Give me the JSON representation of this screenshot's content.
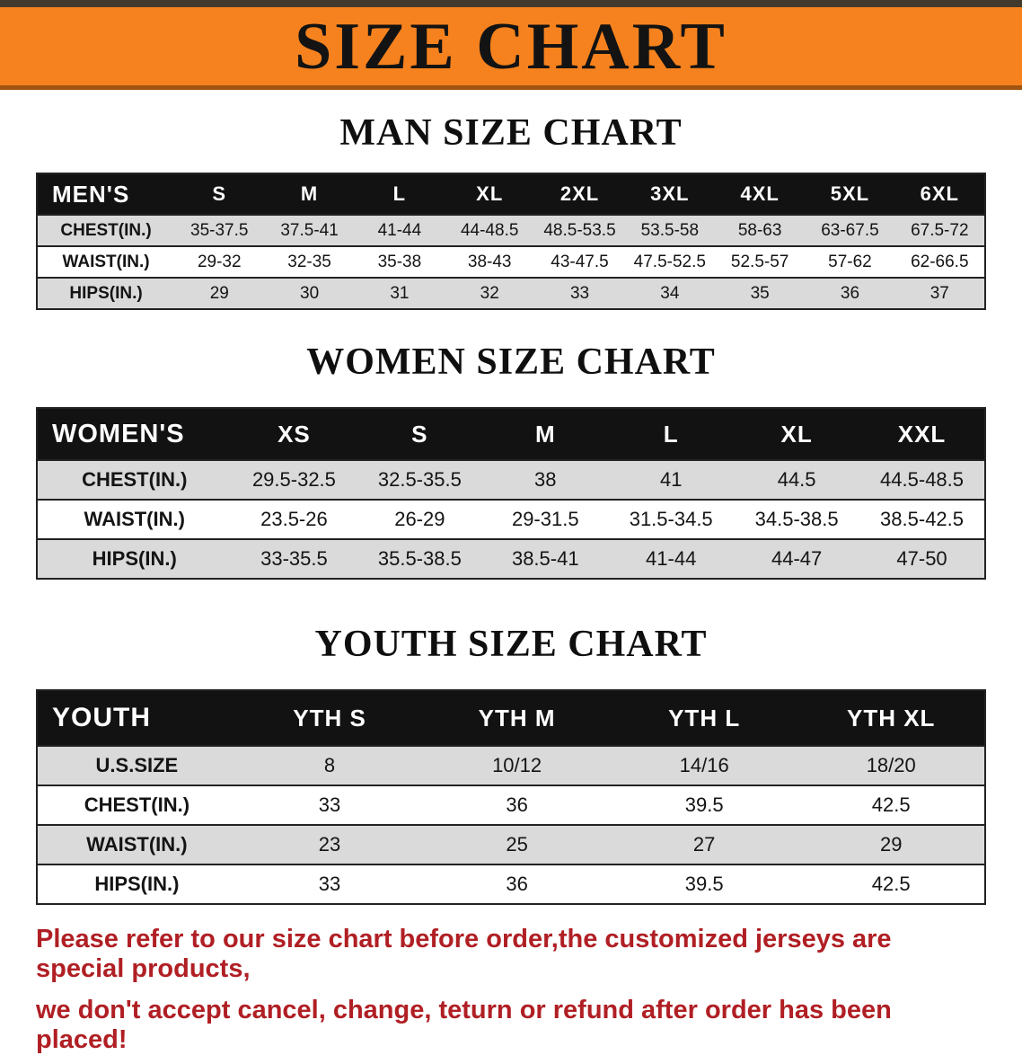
{
  "colors": {
    "banner_bg": "#f5821e",
    "table_header_bg": "#121212",
    "table_header_text": "#ffffff",
    "row_stripe": "#dadada",
    "notice_text": "#b01f24"
  },
  "banner": {
    "title": "SIZE CHART"
  },
  "sections": [
    {
      "id": "men",
      "heading": "MAN SIZE CHART",
      "table": {
        "header": [
          "MEN'S",
          "S",
          "M",
          "L",
          "XL",
          "2XL",
          "3XL",
          "4XL",
          "5XL",
          "6XL"
        ],
        "rows": [
          [
            "CHEST(IN.)",
            "35-37.5",
            "37.5-41",
            "41-44",
            "44-48.5",
            "48.5-53.5",
            "53.5-58",
            "58-63",
            "63-67.5",
            "67.5-72"
          ],
          [
            "WAIST(IN.)",
            "29-32",
            "32-35",
            "35-38",
            "38-43",
            "43-47.5",
            "47.5-52.5",
            "52.5-57",
            "57-62",
            "62-66.5"
          ],
          [
            "HIPS(IN.)",
            "29",
            "30",
            "31",
            "32",
            "33",
            "34",
            "35",
            "36",
            "37"
          ]
        ]
      }
    },
    {
      "id": "women",
      "heading": "WOMEN SIZE CHART",
      "table": {
        "header": [
          "WOMEN'S",
          "XS",
          "S",
          "M",
          "L",
          "XL",
          "XXL"
        ],
        "rows": [
          [
            "CHEST(IN.)",
            "29.5-32.5",
            "32.5-35.5",
            "38",
            "41",
            "44.5",
            "44.5-48.5"
          ],
          [
            "WAIST(IN.)",
            "23.5-26",
            "26-29",
            "29-31.5",
            "31.5-34.5",
            "34.5-38.5",
            "38.5-42.5"
          ],
          [
            "HIPS(IN.)",
            "33-35.5",
            "35.5-38.5",
            "38.5-41",
            "41-44",
            "44-47",
            "47-50"
          ]
        ]
      }
    },
    {
      "id": "youth",
      "heading": "YOUTH SIZE CHART",
      "table": {
        "header": [
          "YOUTH",
          "YTH S",
          "YTH M",
          "YTH L",
          "YTH XL"
        ],
        "rows": [
          [
            "U.S.SIZE",
            "8",
            "10/12",
            "14/16",
            "18/20"
          ],
          [
            "CHEST(IN.)",
            "33",
            "36",
            "39.5",
            "42.5"
          ],
          [
            "WAIST(IN.)",
            "23",
            "25",
            "27",
            "29"
          ],
          [
            "HIPS(IN.)",
            "33",
            "36",
            "39.5",
            "42.5"
          ]
        ]
      }
    }
  ],
  "footer": {
    "lines": [
      "Please refer to our size chart before order,the customized jerseys are special products,",
      "we don't accept cancel, change, teturn or refund after order has been placed!"
    ]
  }
}
